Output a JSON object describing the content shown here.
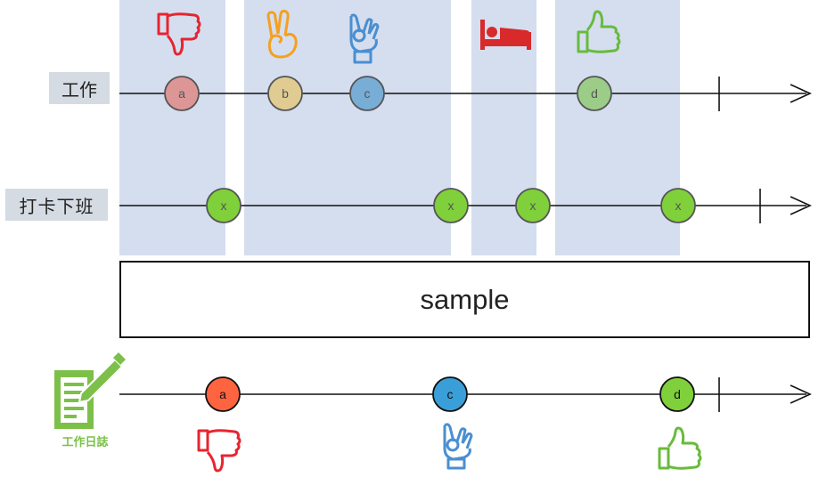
{
  "lanes": {
    "work_label": "工作",
    "clock_label": "打卡下班",
    "log_label": "工作日誌"
  },
  "operator": {
    "label": "sample"
  },
  "work_stream": [
    {
      "label": "a",
      "color": "#dd9696",
      "icon": "thumbs-down-icon",
      "icon_color": "#e8242f"
    },
    {
      "label": "b",
      "color": "#e0cc93",
      "icon": "victory-hand-icon",
      "icon_color": "#f5a020"
    },
    {
      "label": "c",
      "color": "#78add6",
      "icon": "ok-hand-icon",
      "icon_color": "#4a8fd0"
    },
    {
      "label": "d",
      "color": "#9ccd88",
      "icon": "thumbs-up-icon",
      "icon_color": "#68bb3c"
    }
  ],
  "bed_icon": {
    "icon": "bed-icon",
    "color": "#d82a2a"
  },
  "clock_stream": [
    {
      "label": "x",
      "color": "#7fd03a"
    },
    {
      "label": "x",
      "color": "#7fd03a"
    },
    {
      "label": "x",
      "color": "#7fd03a"
    },
    {
      "label": "x",
      "color": "#7fd03a"
    }
  ],
  "output_stream": [
    {
      "label": "a",
      "color": "#ff6441",
      "icon": "thumbs-down-icon",
      "icon_color": "#e8242f"
    },
    {
      "label": "c",
      "color": "#3a9fd8",
      "icon": "ok-hand-icon",
      "icon_color": "#4a8fd0"
    },
    {
      "label": "d",
      "color": "#7fd03a",
      "icon": "thumbs-up-icon",
      "icon_color": "#68bb3c"
    }
  ],
  "colors": {
    "window_fill": "#d4deef",
    "line": "#111111",
    "log_icon": "#7cc04a"
  }
}
